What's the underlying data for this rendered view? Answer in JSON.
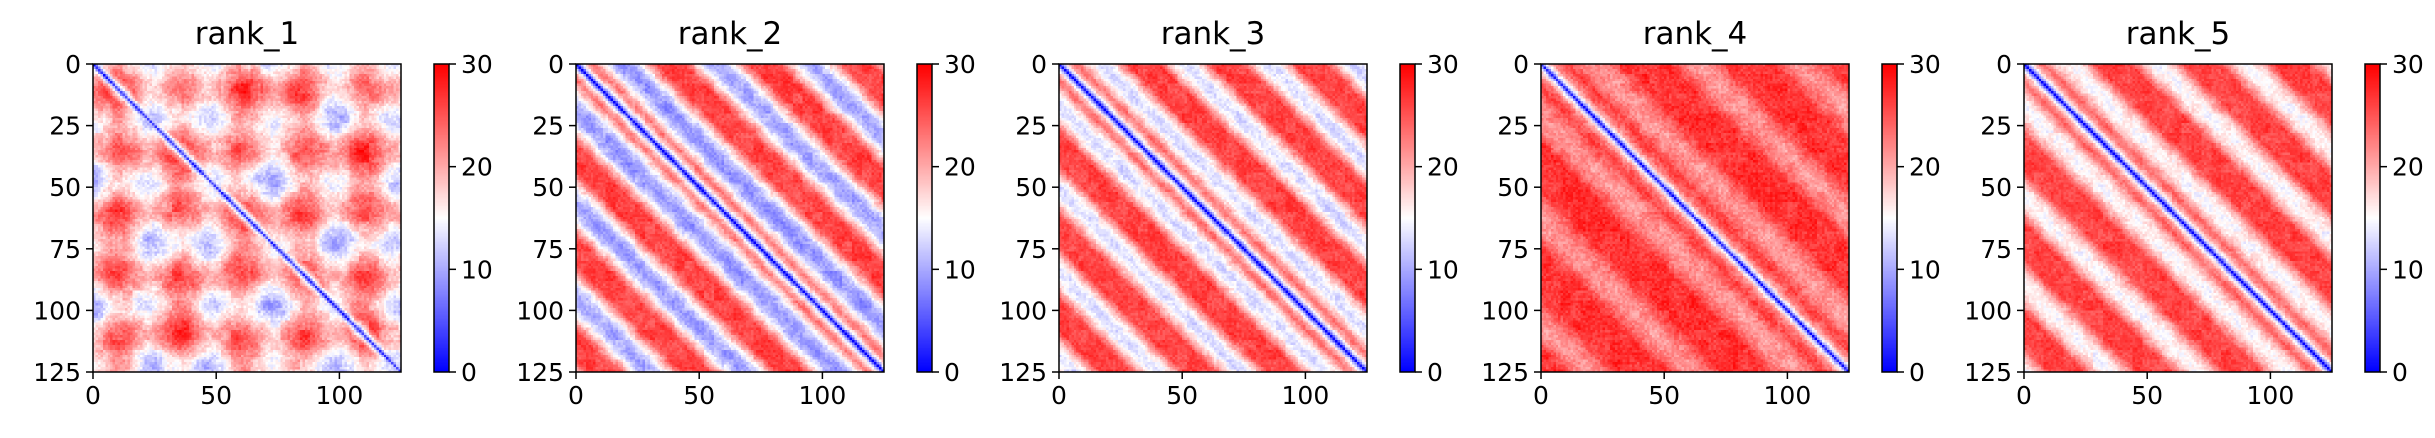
{
  "chart_data": [
    {
      "type": "heatmap",
      "title": "rank_1",
      "n": 125,
      "pattern": 1,
      "xticks": [
        0,
        50,
        100
      ],
      "yticks": [
        0,
        25,
        50,
        75,
        100,
        125
      ],
      "colorbar": {
        "ticks": [
          0,
          10,
          20,
          30
        ],
        "vmin": 0,
        "vmax": 30,
        "colormap": "bwr"
      }
    },
    {
      "type": "heatmap",
      "title": "rank_2",
      "n": 125,
      "pattern": 2,
      "xticks": [
        0,
        50,
        100
      ],
      "yticks": [
        0,
        25,
        50,
        75,
        100,
        125
      ],
      "colorbar": {
        "ticks": [
          0,
          10,
          20,
          30
        ],
        "vmin": 0,
        "vmax": 30,
        "colormap": "bwr"
      }
    },
    {
      "type": "heatmap",
      "title": "rank_3",
      "n": 125,
      "pattern": 3,
      "xticks": [
        0,
        50,
        100
      ],
      "yticks": [
        0,
        25,
        50,
        75,
        100,
        125
      ],
      "colorbar": {
        "ticks": [
          0,
          10,
          20,
          30
        ],
        "vmin": 0,
        "vmax": 30,
        "colormap": "bwr"
      }
    },
    {
      "type": "heatmap",
      "title": "rank_4",
      "n": 125,
      "pattern": 4,
      "xticks": [
        0,
        50,
        100
      ],
      "yticks": [
        0,
        25,
        50,
        75,
        100,
        125
      ],
      "colorbar": {
        "ticks": [
          0,
          10,
          20,
          30
        ],
        "vmin": 0,
        "vmax": 30,
        "colormap": "bwr"
      }
    },
    {
      "type": "heatmap",
      "title": "rank_5",
      "n": 125,
      "pattern": 5,
      "xticks": [
        0,
        50,
        100
      ],
      "yticks": [
        0,
        25,
        50,
        75,
        100,
        125
      ],
      "colorbar": {
        "ticks": [
          0,
          10,
          20,
          30
        ],
        "vmin": 0,
        "vmax": 30,
        "colormap": "bwr"
      }
    }
  ]
}
